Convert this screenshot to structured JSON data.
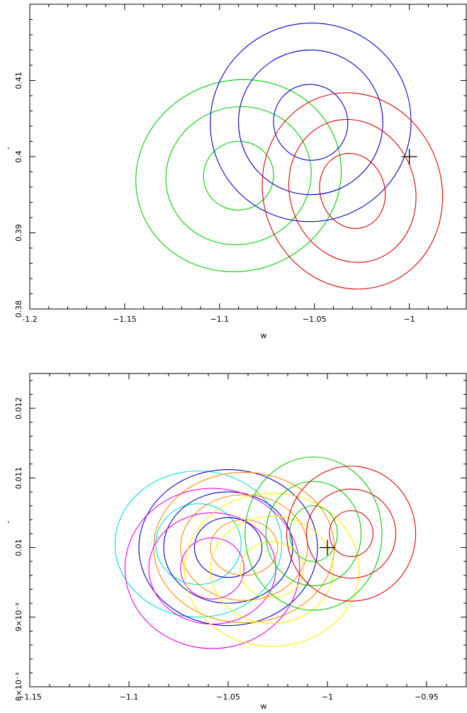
{
  "chart_data": [
    {
      "type": "contour",
      "xlabel": "w",
      "ylabel": "'",
      "xlim": [
        -1.2,
        -0.97
      ],
      "ylim": [
        0.38,
        0.42
      ],
      "x_ticks": [
        -1.2,
        -1.15,
        -1.1,
        -1.05,
        -1.0
      ],
      "x_tick_labels": [
        "-1.2",
        "−1.15",
        "−1.1",
        "−1.05",
        "−1"
      ],
      "y_ticks": [
        0.38,
        0.39,
        0.4,
        0.41
      ],
      "y_tick_labels": [
        "0.38",
        "0.39",
        "0.4",
        "0.41"
      ],
      "fiducial_marker": {
        "x": -1.0,
        "y": 0.4
      },
      "series": [
        {
          "color": "#00cc00",
          "center": [
            -1.09,
            0.3975
          ],
          "radius": [
            [
              0.0185,
              0.0045
            ],
            [
              0.0385,
              0.009
            ],
            [
              0.0545,
              0.0125
            ]
          ],
          "angle_deg": 18
        },
        {
          "color": "#0000cc",
          "center": [
            -1.052,
            0.4045
          ],
          "radius": [
            [
              0.0195,
              0.005
            ],
            [
              0.038,
              0.0095
            ],
            [
              0.053,
              0.013
            ]
          ],
          "angle_deg": 22
        },
        {
          "color": "#dd0000",
          "center": [
            -1.03,
            0.3955
          ],
          "radius": [
            [
              0.017,
              0.005
            ],
            [
              0.033,
              0.0095
            ],
            [
              0.047,
              0.013
            ]
          ],
          "angle_deg": 18
        }
      ]
    },
    {
      "type": "contour",
      "xlabel": "w",
      "ylabel": "'",
      "xlim": [
        -1.15,
        -0.93
      ],
      "ylim": [
        0.008,
        0.0125
      ],
      "x_ticks": [
        -1.15,
        -1.1,
        -1.05,
        -1.0,
        -0.95
      ],
      "x_tick_labels": [
        "−1.15",
        "−1.1",
        "−1.05",
        "−1",
        "−0.95"
      ],
      "y_ticks": [
        0.008,
        0.009,
        0.01,
        0.011,
        0.012
      ],
      "y_tick_labels": [
        "8×10⁻³",
        "9×10⁻³",
        "0.01",
        "0.011",
        "0.012"
      ],
      "fiducial_marker": {
        "x": -1.0,
        "y": 0.01
      },
      "series": [
        {
          "color": "#00dddd",
          "center": [
            -1.065,
            0.01005
          ],
          "radius": [
            [
              0.0215,
              0.00058
            ],
            [
              0.042,
              0.00105
            ]
          ],
          "angle_deg": 0
        },
        {
          "color": "#0000cc",
          "center": [
            -1.05,
            0.01
          ],
          "radius": [
            [
              0.017,
              0.00043
            ],
            [
              0.0325,
              0.0008
            ],
            [
              0.045,
              0.00112
            ]
          ],
          "angle_deg": 0
        },
        {
          "color": "#ff8c00",
          "center": [
            -1.042,
            0.01
          ],
          "radius": [
            [
              0.017,
              0.0004
            ],
            [
              0.032,
              0.00076
            ],
            [
              0.0455,
              0.00108
            ]
          ],
          "angle_deg": 0
        },
        {
          "color": "#ee00ee",
          "center": [
            -1.058,
            0.0097
          ],
          "radius": [
            [
              0.016,
              0.00044
            ],
            [
              0.032,
              0.0008
            ],
            [
              0.044,
              0.00115
            ]
          ],
          "angle_deg": 0
        },
        {
          "color": "#ffee00",
          "center": [
            -1.028,
            0.00968
          ],
          "radius": [
            [
              0.016,
              0.0004
            ],
            [
              0.031,
              0.00077
            ],
            [
              0.044,
              0.0011
            ]
          ],
          "angle_deg": 0
        },
        {
          "color": "#00cc00",
          "center": [
            -1.007,
            0.0102
          ],
          "radius": [
            [
              0.012,
              0.0004
            ],
            [
              0.024,
              0.00075
            ],
            [
              0.0345,
              0.0011
            ]
          ],
          "angle_deg": 0
        },
        {
          "color": "#dd0000",
          "center": [
            -0.988,
            0.0102
          ],
          "radius": [
            [
              0.011,
              0.00033
            ],
            [
              0.0225,
              0.00064
            ],
            [
              0.0325,
              0.00097
            ]
          ],
          "angle_deg": 0
        }
      ]
    }
  ]
}
